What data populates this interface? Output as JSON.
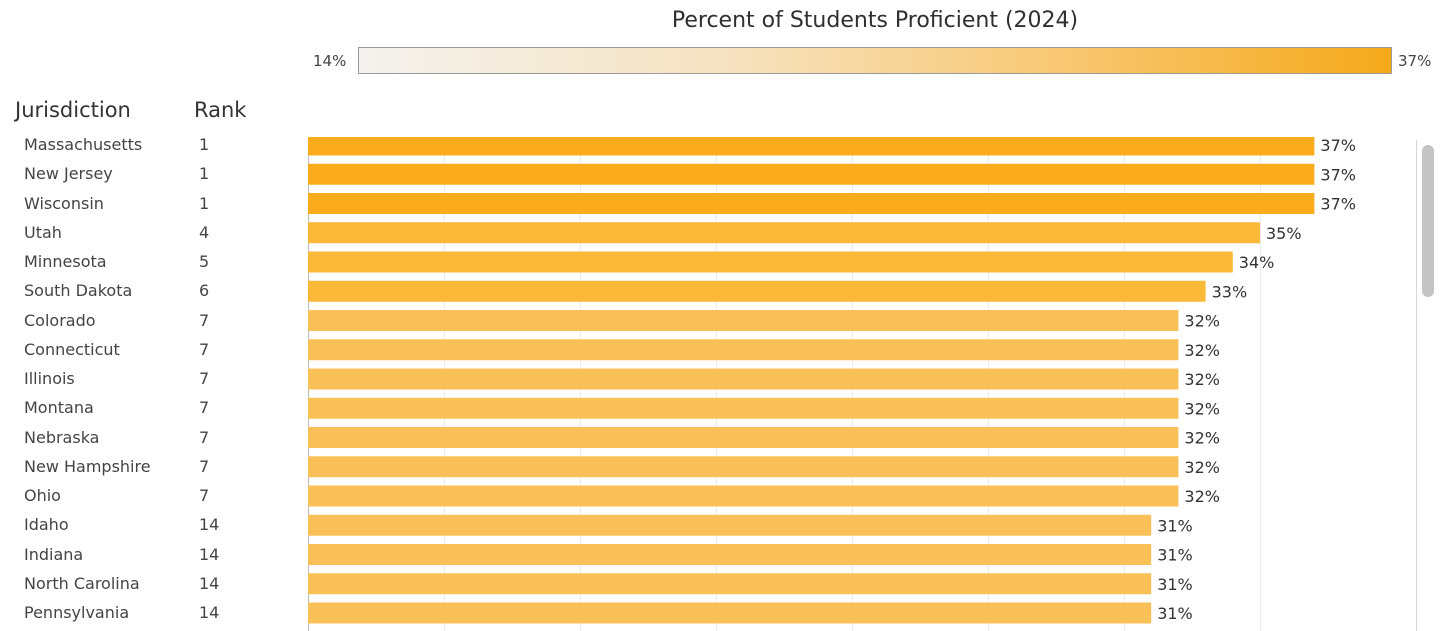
{
  "legend": {
    "title": "Percent of Students Proficient (2024)",
    "min_label": "14%",
    "max_label": "37%",
    "colors": [
      "#f3f2ee",
      "#f6e3c2",
      "#f8c66e",
      "#f5a91a"
    ]
  },
  "headers": {
    "jurisdiction": "Jurisdiction",
    "rank": "Rank"
  },
  "chart_data": {
    "type": "bar",
    "orientation": "horizontal",
    "title": "Percent of Students Proficient (2024)",
    "xlim": [
      0,
      40
    ],
    "grid": true,
    "bar_colors": {
      "max": "#fbac1c",
      "mid": "#fbb938",
      "low": "#f9c058"
    },
    "categories": [
      "Massachusetts",
      "New Jersey",
      "Wisconsin",
      "Utah",
      "Minnesota",
      "South Dakota",
      "Colorado",
      "Connecticut",
      "Illinois",
      "Montana",
      "Nebraska",
      "New Hampshire",
      "Ohio",
      "Idaho",
      "Indiana",
      "North Carolina",
      "Pennsylvania"
    ],
    "ranks": [
      "1",
      "1",
      "1",
      "4",
      "5",
      "6",
      "7",
      "7",
      "7",
      "7",
      "7",
      "7",
      "7",
      "14",
      "14",
      "14",
      "14"
    ],
    "values": [
      37,
      37,
      37,
      35,
      34,
      33,
      32,
      32,
      32,
      32,
      32,
      32,
      32,
      31,
      31,
      31,
      31
    ],
    "labels": [
      "37%",
      "37%",
      "37%",
      "35%",
      "34%",
      "33%",
      "32%",
      "32%",
      "32%",
      "32%",
      "32%",
      "32%",
      "32%",
      "31%",
      "31%",
      "31%",
      "31%"
    ]
  }
}
